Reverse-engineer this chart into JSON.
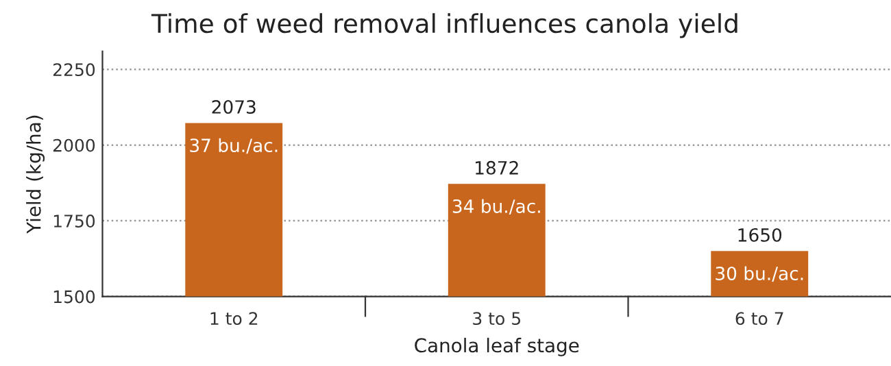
{
  "chart_data": {
    "type": "bar",
    "title": "Time of weed removal influences canola yield",
    "xlabel": "Canola leaf stage",
    "ylabel": "Yield (kg/ha)",
    "categories": [
      "1 to 2",
      "3 to 5",
      "6 to 7"
    ],
    "values": [
      2073,
      1872,
      1650
    ],
    "color": "#c8661e",
    "ylim": [
      1500,
      2310
    ],
    "yticks": [
      1500,
      1750,
      2000,
      2250
    ],
    "grid": "y",
    "data_labels": true,
    "annotations": [
      {
        "text": "37 bu./ac.",
        "x": "1 to 2",
        "y": 2073
      },
      {
        "text": "34 bu./ac.",
        "x": "3 to 5",
        "y": 1872
      },
      {
        "text": "30 bu./ac.",
        "x": "6 to 7",
        "y": 1650
      }
    ]
  }
}
